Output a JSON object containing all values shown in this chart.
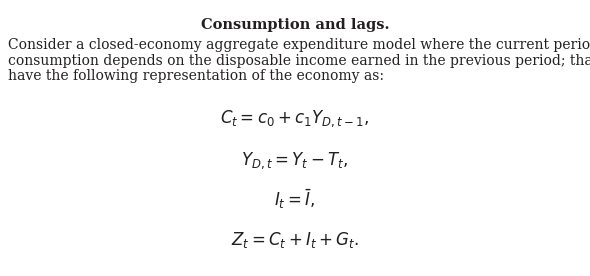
{
  "title": "Consumption and lags.",
  "body_line1": "Consider a closed-economy aggregate expenditure model where the current period’s",
  "body_line2": "consumption depends on the disposable income earned in the previous period; that is, we",
  "body_line3": "have the following representation of the economy as:",
  "eq1": "$C_t = c_0 + c_1 Y_{D,t-1},$",
  "eq2": "$Y_{D,t} = Y_t - T_t,$",
  "eq3": "$I_t = \\bar{I},$",
  "eq4": "$Z_t = C_t + I_t + G_t.$",
  "background_color": "#ffffff",
  "text_color": "#231f20",
  "title_fontsize": 10.5,
  "body_fontsize": 10.0,
  "eq_fontsize": 12,
  "fig_width": 5.9,
  "fig_height": 2.76,
  "dpi": 100
}
